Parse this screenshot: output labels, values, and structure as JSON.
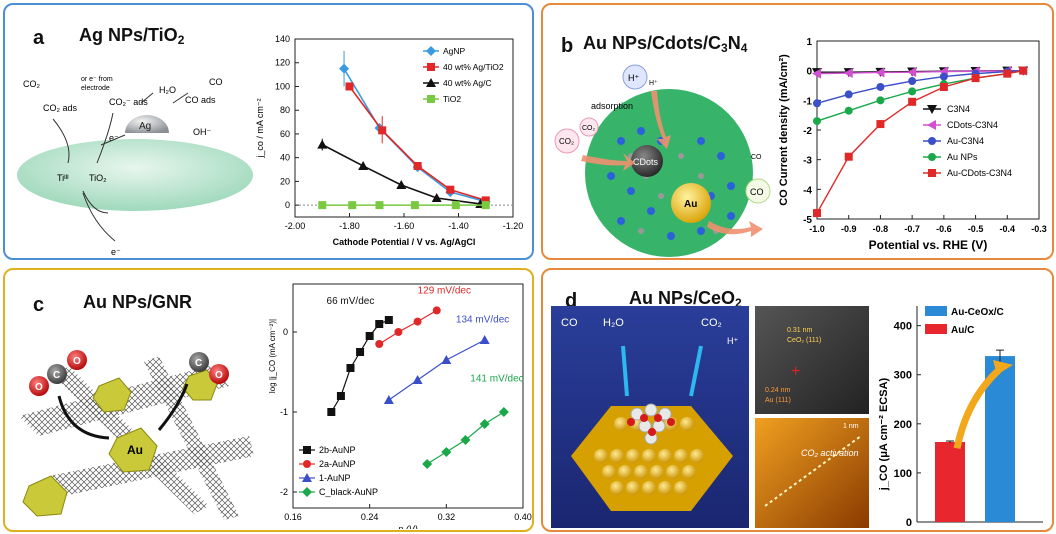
{
  "colors": {
    "border_blue": "#4a8fd6",
    "border_orange": "#e58a3a",
    "border_yellow": "#e0b020"
  },
  "panel_a": {
    "letter": "a",
    "title_main": "Ag NPs/TiO",
    "title_sub": "2",
    "scheme": {
      "co2_left": "CO₂",
      "or_from": "or e⁻ from",
      "electrode": "electrode",
      "co2_ads_1": "CO₂ ads",
      "co2_ads_2": "CO₂⁻ ads",
      "h2o": "H₂O",
      "co_ads": "CO ads",
      "co_gas": "CO",
      "ag": "Ag",
      "oh": "OH⁻",
      "e_minus": "e⁻",
      "ti3": "Tiᴵᴵᴵ",
      "tio2": "TiO₂",
      "e_bottom": "e⁻"
    },
    "chart_data": {
      "type": "line",
      "ylabel": "j_co / mA cm⁻²",
      "xlabel": "Cathode Potential / V vs. Ag/AgCl",
      "xlim": [
        -2.0,
        -1.2
      ],
      "ylim": [
        -10,
        140
      ],
      "xticks": [
        "-2.00",
        "-1.80",
        "-1.60",
        "-1.40",
        "-1.20"
      ],
      "yticks": [
        "0",
        "20",
        "40",
        "60",
        "80",
        "100",
        "120",
        "140"
      ],
      "series": [
        {
          "name": "AgNP",
          "color": "#3a9be0",
          "marker": "diamond",
          "x": [
            -1.82,
            -1.69,
            -1.55,
            -1.43,
            -1.3
          ],
          "y": [
            115,
            65,
            32,
            11,
            3
          ]
        },
        {
          "name": "40 wt% Ag/TiO2",
          "color": "#e02828",
          "marker": "square",
          "x": [
            -1.8,
            -1.68,
            -1.55,
            -1.43,
            -1.3
          ],
          "y": [
            100,
            63,
            33,
            13,
            4
          ]
        },
        {
          "name": "40 wt% Ag/C",
          "color": "#111111",
          "marker": "triangle",
          "x": [
            -1.9,
            -1.75,
            -1.61,
            -1.48,
            -1.32
          ],
          "y": [
            51,
            33,
            17,
            6,
            1
          ]
        },
        {
          "name": "TiO2",
          "color": "#7ac943",
          "marker": "square",
          "x": [
            -1.9,
            -1.79,
            -1.69,
            -1.56,
            -1.41,
            -1.3
          ],
          "y": [
            0,
            0,
            0,
            0,
            0,
            0
          ]
        }
      ]
    }
  },
  "panel_b": {
    "letter": "b",
    "title_main": "Au NPs/Cdots/C",
    "title_sub": "3",
    "title_tail": "N",
    "title_sub2": "4",
    "scheme": {
      "h_plus_1": "H⁺",
      "h_plus_2": "H⁺",
      "adsorption": "adsorption",
      "co2_1": "CO₂",
      "co2_2": "CO₂",
      "cdots": "CDots",
      "au": "Au",
      "co_1": "CO",
      "co_2": "CO"
    },
    "chart_data": {
      "type": "line",
      "ylabel": "CO Current density (mA/cm²)",
      "xlabel": "Potential vs. RHE (V)",
      "xlim": [
        -1.0,
        -0.3
      ],
      "ylim": [
        -5,
        1
      ],
      "xticks": [
        "-1.0",
        "-0.9",
        "-0.8",
        "-0.7",
        "-0.6",
        "-0.5",
        "-0.4",
        "-0.3"
      ],
      "yticks": [
        "1",
        "0",
        "-1",
        "-2",
        "-3",
        "-4",
        "-5"
      ],
      "x": [
        -1.0,
        -0.9,
        -0.8,
        -0.7,
        -0.6,
        -0.5,
        -0.4,
        -0.35
      ],
      "series": [
        {
          "name": "C3N4",
          "color": "#111111",
          "marker": "triangle-down",
          "y": [
            -0.05,
            -0.05,
            -0.04,
            -0.03,
            -0.02,
            -0.01,
            0,
            0
          ]
        },
        {
          "name": "CDots-C3N4",
          "color": "#d24fd2",
          "marker": "triangle-left",
          "y": [
            -0.1,
            -0.08,
            -0.06,
            -0.05,
            -0.03,
            -0.02,
            -0.01,
            0
          ]
        },
        {
          "name": "Au-C3N4",
          "color": "#3b4fc9",
          "marker": "circle",
          "y": [
            -1.1,
            -0.8,
            -0.55,
            -0.35,
            -0.2,
            -0.1,
            -0.03,
            0
          ]
        },
        {
          "name": "Au NPs",
          "color": "#1aa84a",
          "marker": "circle",
          "y": [
            -1.7,
            -1.35,
            -1.0,
            -0.7,
            -0.45,
            -0.25,
            -0.1,
            0
          ]
        },
        {
          "name": "Au-CDots-C3N4",
          "color": "#e02828",
          "marker": "square",
          "y": [
            -4.8,
            -2.9,
            -1.8,
            -1.05,
            -0.55,
            -0.25,
            -0.1,
            0
          ]
        }
      ]
    }
  },
  "panel_c": {
    "letter": "c",
    "title": "Au NPs/GNR",
    "scheme": {
      "o1": "O",
      "c1": "C",
      "o2": "O",
      "c2": "C",
      "o3": "O",
      "au": "Au"
    },
    "chart_data": {
      "type": "line",
      "ylabel": "log |j_CO (mA cm⁻²)|",
      "xlabel": "η (V)",
      "xlim": [
        0.16,
        0.4
      ],
      "ylim": [
        -2.2,
        0.6
      ],
      "xticks": [
        "0.16",
        "0.24",
        "0.32",
        "0.40"
      ],
      "yticks": [
        "0",
        "-1",
        "-2"
      ],
      "annotations": [
        "66 mV/dec",
        "129 mV/dec",
        "134 mV/dec",
        "141 mV/dec"
      ],
      "series": [
        {
          "name": "2b-AuNP",
          "color": "#111111",
          "marker": "square",
          "x": [
            0.2,
            0.21,
            0.22,
            0.23,
            0.24,
            0.25,
            0.26
          ],
          "y": [
            -1.0,
            -0.8,
            -0.45,
            -0.25,
            -0.05,
            0.1,
            0.15
          ]
        },
        {
          "name": "2a-AuNP",
          "color": "#e02828",
          "marker": "circle",
          "x": [
            0.25,
            0.27,
            0.29,
            0.31
          ],
          "y": [
            -0.15,
            0.0,
            0.13,
            0.27
          ]
        },
        {
          "name": "1-AuNP",
          "color": "#3b4fc9",
          "marker": "triangle",
          "x": [
            0.26,
            0.29,
            0.32,
            0.36
          ],
          "y": [
            -0.85,
            -0.6,
            -0.35,
            -0.1
          ]
        },
        {
          "name": "C_black-AuNP",
          "color": "#1aa84a",
          "marker": "diamond",
          "x": [
            0.3,
            0.32,
            0.34,
            0.36,
            0.38
          ],
          "y": [
            -1.65,
            -1.5,
            -1.35,
            -1.15,
            -1.0
          ]
        }
      ]
    }
  },
  "panel_d": {
    "letter": "d",
    "title_main": "Au NPs/CeO",
    "title_sub": "2",
    "scheme": {
      "co": "CO",
      "h2o": "H₂O",
      "co2": "CO₂",
      "h_plus": "H⁺",
      "lattice1": "0.31 nm",
      "lattice2": "CeO₂ (111)",
      "lattice3": "0.24 nm",
      "lattice4": "Au (111)",
      "scale": "1 nm",
      "activation": "CO₂ activation"
    },
    "chart_data": {
      "type": "bar",
      "ylabel": "j_CO (μA cm⁻² ECSA)",
      "categories": [
        "Au/C",
        "Au-CeOx/C"
      ],
      "values": [
        163,
        338
      ],
      "errors": [
        2,
        12
      ],
      "colors": [
        "#e8262e",
        "#2a8ad6"
      ],
      "ylim": [
        0,
        440
      ],
      "yticks": [
        "0",
        "100",
        "200",
        "300",
        "400"
      ]
    }
  }
}
